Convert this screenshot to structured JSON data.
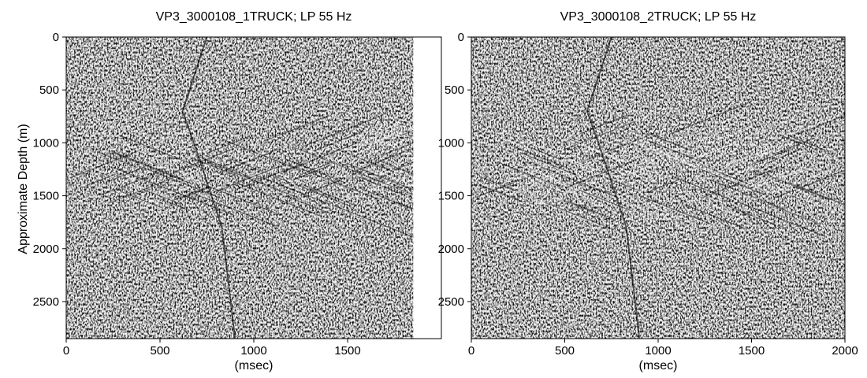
{
  "chart_data": [
    {
      "type": "heatmap",
      "title": "VP3_3000108_1TRUCK; LP 55 Hz",
      "ylabel": "Approximate Depth (m)",
      "xlabel": "(msec)",
      "xlim": [
        0,
        2000
      ],
      "ylim": [
        0,
        2850
      ],
      "x_ticks": [
        0,
        500,
        1000,
        1500
      ],
      "y_ticks": [
        0,
        500,
        1000,
        1500,
        2000,
        2500
      ],
      "data_extent_x_msec": 1850,
      "colormap": "grayscale seismic amplitude (black/white wiggle)",
      "values": "dense noisy seismic record, not individually readable"
    },
    {
      "type": "heatmap",
      "title": "VP3_3000108_2TRUCK; LP 55 Hz",
      "xlabel": "(msec)",
      "xlim": [
        0,
        2000
      ],
      "ylim": [
        0,
        2850
      ],
      "x_ticks": [
        0,
        500,
        1000,
        1500,
        2000
      ],
      "y_ticks": [
        0,
        500,
        1000,
        1500,
        2000,
        2500
      ],
      "colormap": "grayscale seismic amplitude (black/white wiggle)",
      "values": "dense noisy seismic record, not individually readable"
    }
  ],
  "colors": {
    "light": "#f2f2f2",
    "dark": "#111111",
    "background": "#ffffff"
  }
}
